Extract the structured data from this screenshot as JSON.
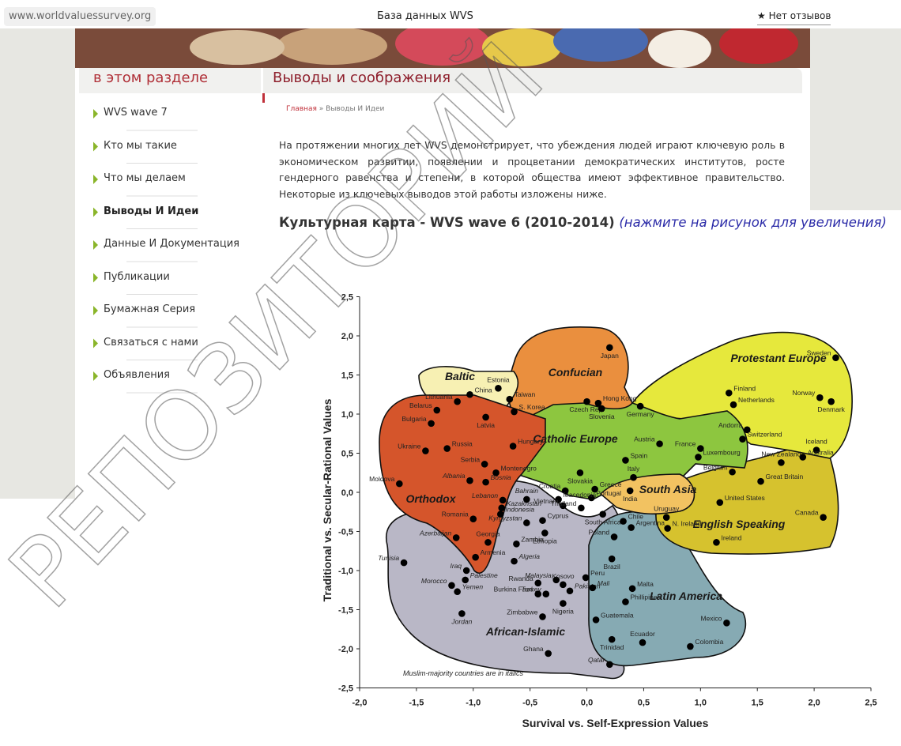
{
  "browser": {
    "url": "www.worldvaluessurvey.org",
    "page_title": "База данных WVS",
    "feedback": "★ Нет отзывов"
  },
  "sidebar": {
    "title": "в этом разделе",
    "items": [
      {
        "label": "WVS wave 7",
        "active": false
      },
      {
        "label": "Кто мы такие",
        "active": false
      },
      {
        "label": "Что мы делаем",
        "active": false
      },
      {
        "label": "Выводы И Идеи",
        "active": true
      },
      {
        "label": "Данные И Документация",
        "active": false
      },
      {
        "label": "Публикации",
        "active": false
      },
      {
        "label": "Бумажная Серия",
        "active": false
      },
      {
        "label": "Связаться с нами",
        "active": false
      },
      {
        "label": "Объявления",
        "active": false
      }
    ]
  },
  "main": {
    "title": "Выводы и соображения",
    "breadcrumb": {
      "home": "Главная",
      "separator": "»",
      "current": "Выводы И Идеи"
    },
    "paragraph": "На протяжении многих лет WVS демонстрирует, что убеждения людей играют ключевую роль в экономическом развитии, появлении и процветании демократических институтов, росте гендерного равенства и степени, в которой общества имеют эффективное правительство. Некоторые из ключевых выводов этой работы изложены ниже.",
    "map_heading": "Культурная карта - WVS wave 6 (2010-2014)",
    "map_hint": "(нажмите на рисунок для увеличения)"
  },
  "chart_data": {
    "type": "scatter",
    "x_label": "Survival vs. Self-Expression Values",
    "y_label": "Traditional vs. Secular-Rational Values",
    "note": "Muslim-majority countries are in italics",
    "zone_labels": [
      "African-Islamic",
      "Latin America",
      "English Speaking",
      "Protestant Europe",
      "Catholic Europe",
      "Confucian",
      "Baltic",
      "Orthodox",
      "South Asia"
    ],
    "color": "#000000",
    "xlim": [
      -2.0,
      2.5
    ],
    "ylim": [
      -2.5,
      2.5
    ],
    "xticks": [
      {
        "value": -2.0,
        "label": "-2,0"
      },
      {
        "value": -1.5,
        "label": "-1,5"
      },
      {
        "value": -1.0,
        "label": "-1,0"
      },
      {
        "value": -0.5,
        "label": "-0,5"
      },
      {
        "value": 0,
        "label": "0,0"
      },
      {
        "value": 0.5,
        "label": "0,5"
      },
      {
        "value": 1.0,
        "label": "1,0"
      },
      {
        "value": 1.5,
        "label": "1,5"
      },
      {
        "value": 2.0,
        "label": "2,0"
      },
      {
        "value": 2.5,
        "label": "2,5"
      }
    ],
    "yticks": [
      {
        "value": -2.5,
        "label": "-2,5"
      },
      {
        "value": -2.0,
        "label": "-2,0"
      },
      {
        "value": -1.5,
        "label": "-1,5"
      },
      {
        "value": -1.0,
        "label": "-1,0"
      },
      {
        "value": -0.5,
        "label": "-0,5"
      },
      {
        "value": 0,
        "label": "0,0"
      },
      {
        "value": 0.5,
        "label": "0,5"
      },
      {
        "value": 1.0,
        "label": "1,0"
      },
      {
        "value": 1.5,
        "label": "1,5"
      },
      {
        "value": 2.0,
        "label": "2,0"
      },
      {
        "value": 2.5,
        "label": "2,5"
      }
    ],
    "point_labels": [
      "Japan",
      "Estonia",
      "China",
      "Lithuania",
      "Taiwan",
      "S. Korea",
      "Latvia",
      "Belarus",
      "Bulgaria",
      "Hong Kong",
      "Czech Rep.",
      "Slovenia",
      "Germany",
      "Finland",
      "Netherlands",
      "Sweden",
      "Norway",
      "Denmark",
      "Andorra",
      "Switzerland",
      "Iceland",
      "Australia",
      "New Zealand",
      "Great Britain",
      "France",
      "Luxembourg",
      "Belgium",
      "United States",
      "Canada",
      "Ireland",
      "N. Ireland",
      "Uruguay",
      "Austria",
      "Spain",
      "Italy",
      "India",
      "Hungary",
      "Slovakia",
      "Greece",
      "Croatia",
      "Portugal",
      "Ukraine",
      "Russia",
      "Serbia",
      "Montenegro",
      "Moldova",
      "Albania",
      "Bosnia",
      "Romania",
      "Georgia",
      "Armenia",
      "Azerbaijan",
      "Tunisia",
      "Iraq",
      "Palestine",
      "Morocco",
      "Yemen",
      "Jordan",
      "Lebanon",
      "Kazakhstan",
      "Indonesia",
      "Bahrain",
      "Macedonia",
      "Kyrgyzstan",
      "Cyprus",
      "Vietnam",
      "Thailand",
      "South Africa",
      "Chile",
      "Ethiopia",
      "Zambia",
      "Algeria",
      "Argentina",
      "Poland",
      "Brazil",
      "Malaysia",
      "Kosovo",
      "Rwanda",
      "Turkey",
      "Burkina Faso",
      "Pakistan",
      "Peru",
      "Mali",
      "Zimbabwe",
      "Nigeria",
      "Malta",
      "Phillipines",
      "Mexico",
      "Guatemala",
      "Ecuador",
      "Colombia",
      "Trinidad",
      "Ghana",
      "Qatar"
    ],
    "x": [
      0.2,
      -0.78,
      -1.03,
      -1.14,
      -0.68,
      -0.64,
      -0.89,
      -1.32,
      -1.37,
      0.1,
      0.0,
      0.13,
      0.47,
      1.25,
      1.29,
      2.19,
      2.05,
      2.15,
      1.41,
      1.37,
      2.02,
      1.9,
      1.71,
      1.53,
      1.0,
      0.98,
      1.28,
      1.17,
      2.08,
      1.14,
      0.71,
      0.7,
      0.64,
      0.34,
      0.41,
      0.38,
      -0.65,
      -0.06,
      0.07,
      -0.19,
      0.04,
      -1.42,
      -1.23,
      -0.9,
      -0.8,
      -1.65,
      -1.03,
      -0.89,
      -1.0,
      -0.87,
      -0.98,
      -1.15,
      -1.61,
      -1.06,
      -1.07,
      -1.19,
      -1.14,
      -1.1,
      -0.74,
      -0.75,
      -0.76,
      -0.53,
      -0.25,
      -0.53,
      -0.39,
      -0.21,
      -0.05,
      0.14,
      0.32,
      -0.37,
      -0.62,
      -0.64,
      0.39,
      0.24,
      0.22,
      -0.27,
      -0.21,
      -0.43,
      -0.36,
      -0.43,
      -0.15,
      -0.01,
      0.05,
      -0.39,
      -0.21,
      0.4,
      0.34,
      1.23,
      0.08,
      0.49,
      0.91,
      0.22,
      -0.34,
      0.2
    ],
    "values": [
      1.85,
      1.33,
      1.25,
      1.16,
      1.19,
      1.03,
      0.96,
      1.05,
      0.88,
      1.14,
      1.16,
      1.07,
      1.1,
      1.27,
      1.12,
      1.72,
      1.21,
      1.16,
      0.8,
      0.68,
      0.54,
      0.45,
      0.38,
      0.14,
      0.56,
      0.45,
      0.26,
      -0.13,
      -0.32,
      -0.64,
      -0.46,
      -0.32,
      0.62,
      0.41,
      0.19,
      0.02,
      0.59,
      0.25,
      0.04,
      0.02,
      -0.07,
      0.53,
      0.56,
      0.36,
      0.25,
      0.11,
      0.15,
      0.13,
      -0.34,
      -0.64,
      -0.83,
      -0.58,
      -0.9,
      -1.0,
      -1.12,
      -1.19,
      -1.27,
      -1.55,
      -0.1,
      -0.2,
      -0.28,
      -0.09,
      -0.09,
      -0.39,
      -0.36,
      -0.17,
      -0.2,
      -0.28,
      -0.37,
      -0.52,
      -0.66,
      -0.88,
      -0.45,
      -0.57,
      -0.85,
      -1.12,
      -1.18,
      -1.16,
      -1.3,
      -1.3,
      -1.26,
      -1.09,
      -1.22,
      -1.59,
      -1.42,
      -1.23,
      -1.4,
      -1.67,
      -1.63,
      -1.92,
      -1.97,
      -1.88,
      -2.06,
      -2.2
    ],
    "label_italic": [
      false,
      false,
      false,
      false,
      false,
      false,
      false,
      false,
      false,
      false,
      false,
      false,
      false,
      false,
      false,
      false,
      false,
      false,
      false,
      false,
      false,
      false,
      false,
      false,
      false,
      false,
      false,
      false,
      false,
      false,
      false,
      false,
      false,
      false,
      false,
      false,
      false,
      false,
      false,
      false,
      false,
      false,
      false,
      false,
      false,
      false,
      true,
      true,
      false,
      false,
      false,
      true,
      true,
      true,
      true,
      true,
      true,
      true,
      true,
      true,
      true,
      true,
      false,
      true,
      false,
      false,
      false,
      false,
      false,
      false,
      false,
      true,
      false,
      false,
      false,
      true,
      true,
      false,
      true,
      false,
      true,
      false,
      true,
      false,
      false,
      false,
      false,
      false,
      false,
      false,
      false,
      false,
      false,
      true
    ]
  },
  "watermark": "РЕПОЗИТОРИЙ"
}
